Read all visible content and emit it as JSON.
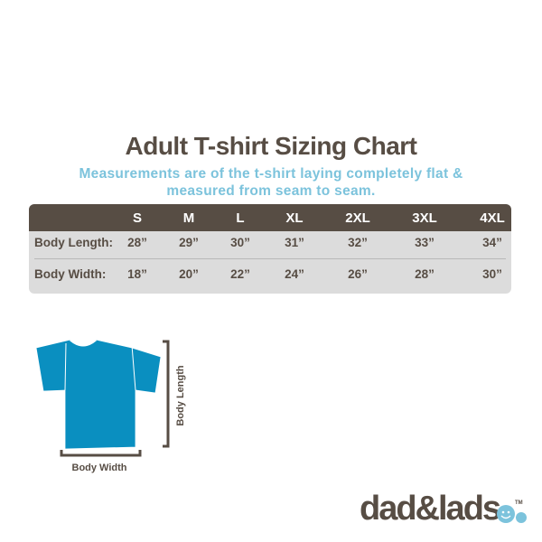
{
  "title": "Adult T-shirt Sizing Chart",
  "subtitle": "Measurements are of the t-shirt laying completely flat & measured from seam to seam.",
  "table": {
    "sizes": [
      "S",
      "M",
      "L",
      "XL",
      "2XL",
      "3XL",
      "4XL"
    ],
    "rows": [
      {
        "label": "Body Length:",
        "values": [
          "28”",
          "29”",
          "30”",
          "31”",
          "32”",
          "33”",
          "34”"
        ]
      },
      {
        "label": "Body Width:",
        "values": [
          "18”",
          "20”",
          "22”",
          "24”",
          "26”",
          "28”",
          "30”"
        ]
      }
    ]
  },
  "diagram": {
    "width_label": "Body Width",
    "length_label": "Body Length",
    "shirt_color": "#0a8fc0"
  },
  "logo": {
    "text": "dad&lads",
    "tm": "TM"
  },
  "colors": {
    "brown": "#574d44",
    "light_blue": "#7cc3dc",
    "grey": "#dcdcdc"
  }
}
